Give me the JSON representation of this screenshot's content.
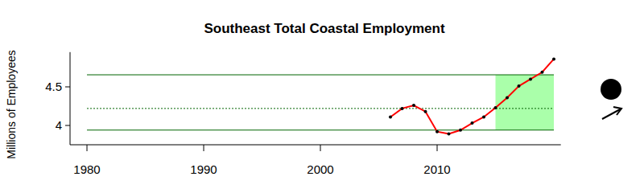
{
  "chart_data": {
    "type": "line",
    "title": "Southeast Total Coastal Employment",
    "y_label": "Millions of Employees",
    "x": [
      2006,
      2007,
      2008,
      2009,
      2010,
      2011,
      2012,
      2013,
      2014,
      2015,
      2016,
      2017,
      2018,
      2019,
      2020
    ],
    "values": [
      4.11,
      4.22,
      4.26,
      4.18,
      3.92,
      3.89,
      3.94,
      4.03,
      4.11,
      4.23,
      4.36,
      4.51,
      4.6,
      4.69,
      4.86
    ],
    "color": "#ff0000",
    "marker": "circle",
    "mean": 4.22,
    "upper": 4.656,
    "lower": 3.94,
    "highlight_range": [
      2015,
      2020
    ],
    "xlim": [
      1978.55,
      2020.6
    ],
    "ylim": [
      3.75,
      4.95
    ],
    "xticks": [
      1980,
      1990,
      2000,
      2010
    ],
    "yticks": [
      4,
      4.5
    ]
  }
}
